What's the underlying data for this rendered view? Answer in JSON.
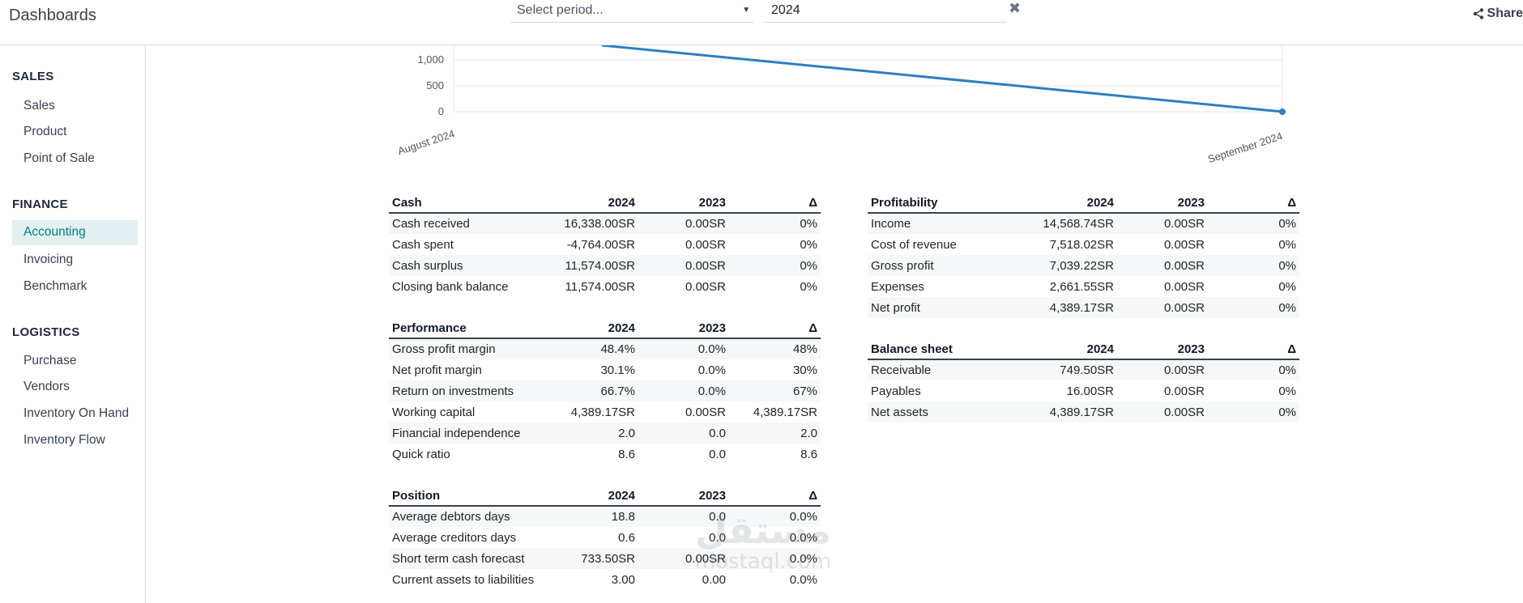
{
  "header": {
    "app_title": "Dashboards",
    "period_placeholder": "Select period...",
    "year_value": "2024",
    "share_label": "Share"
  },
  "sidebar": {
    "sections": [
      {
        "title": "SALES",
        "items": [
          "Sales",
          "Product",
          "Point of Sale"
        ]
      },
      {
        "title": "FINANCE",
        "items": [
          "Accounting",
          "Invoicing",
          "Benchmark"
        ]
      },
      {
        "title": "LOGISTICS",
        "items": [
          "Purchase",
          "Vendors",
          "Inventory On Hand",
          "Inventory Flow"
        ]
      }
    ],
    "active_item": "Accounting"
  },
  "chart_data": {
    "type": "line",
    "categories": [
      "August 2024",
      "September 2024"
    ],
    "series": [
      {
        "values": [
          1560,
          0
        ]
      }
    ],
    "yticks": [
      "1,000",
      "500",
      "0"
    ],
    "ylim": [
      0,
      1600
    ],
    "grid": true,
    "color": "#2d7fc1"
  },
  "tables": {
    "cash": {
      "header": [
        "Cash",
        "2024",
        "2023",
        "Δ"
      ],
      "rows": [
        [
          "Cash received",
          "16,338.00SR",
          "0.00SR",
          "0%"
        ],
        [
          "Cash spent",
          "-4,764.00SR",
          "0.00SR",
          "0%"
        ],
        [
          "Cash surplus",
          "11,574.00SR",
          "0.00SR",
          "0%"
        ],
        [
          "Closing bank balance",
          "11,574.00SR",
          "0.00SR",
          "0%"
        ]
      ]
    },
    "performance": {
      "header": [
        "Performance",
        "2024",
        "2023",
        "Δ"
      ],
      "rows": [
        [
          "Gross profit margin",
          "48.4%",
          "0.0%",
          "48%"
        ],
        [
          "Net profit margin",
          "30.1%",
          "0.0%",
          "30%"
        ],
        [
          "Return on investments",
          "66.7%",
          "0.0%",
          "67%"
        ],
        [
          "Working capital",
          "4,389.17SR",
          "0.00SR",
          "4,389.17SR"
        ],
        [
          "Financial independence",
          "2.0",
          "0.0",
          "2.0"
        ],
        [
          "Quick ratio",
          "8.6",
          "0.0",
          "8.6"
        ]
      ]
    },
    "position": {
      "header": [
        "Position",
        "2024",
        "2023",
        "Δ"
      ],
      "rows": [
        [
          "Average debtors days",
          "18.8",
          "0.0",
          "0.0%"
        ],
        [
          "Average creditors days",
          "0.6",
          "0.0",
          "0.0%"
        ],
        [
          "Short term cash forecast",
          "733.50SR",
          "0.00SR",
          "0.0%"
        ],
        [
          "Current assets to liabilities",
          "3.00",
          "0.00",
          "0.0%"
        ]
      ]
    },
    "profitability": {
      "header": [
        "Profitability",
        "2024",
        "2023",
        "Δ"
      ],
      "rows": [
        [
          "Income",
          "14,568.74SR",
          "0.00SR",
          "0%"
        ],
        [
          "Cost of revenue",
          "7,518.02SR",
          "0.00SR",
          "0%"
        ],
        [
          "Gross profit",
          "7,039.22SR",
          "0.00SR",
          "0%"
        ],
        [
          "Expenses",
          "2,661.55SR",
          "0.00SR",
          "0%"
        ],
        [
          "Net profit",
          "4,389.17SR",
          "0.00SR",
          "0%"
        ]
      ]
    },
    "balance_sheet": {
      "header": [
        "Balance sheet",
        "2024",
        "2023",
        "Δ"
      ],
      "rows": [
        [
          "Receivable",
          "749.50SR",
          "0.00SR",
          "0%"
        ],
        [
          "Payables",
          "16.00SR",
          "0.00SR",
          "0%"
        ],
        [
          "Net assets",
          "4,389.17SR",
          "0.00SR",
          "0%"
        ]
      ]
    }
  },
  "watermark": {
    "arabic": "مستقل",
    "latin": "mostaql.com"
  }
}
